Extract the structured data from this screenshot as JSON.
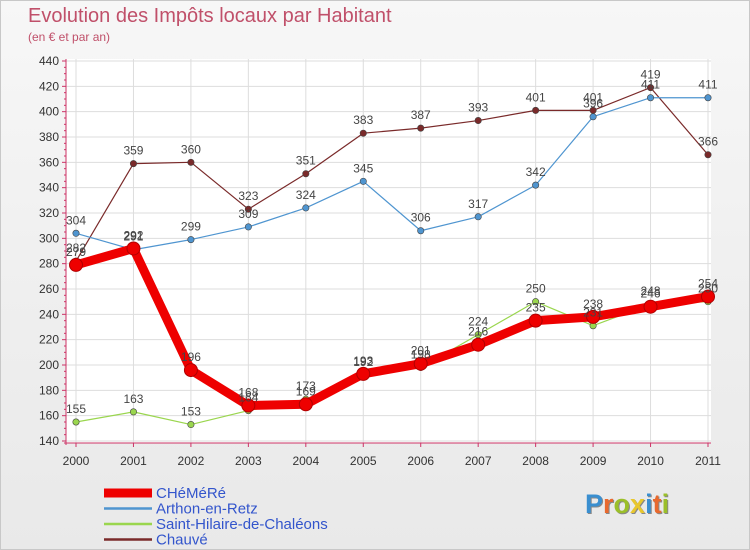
{
  "header": {
    "title": "Evolution des Impôts locaux par Habitant",
    "subtitle": "(en € et par an)"
  },
  "logo": {
    "text": "Proxiti",
    "letters": [
      {
        "ch": "P",
        "color": "#3a8fd0"
      },
      {
        "ch": "r",
        "color": "#e8692e"
      },
      {
        "ch": "o",
        "color": "#9bbf2a"
      },
      {
        "ch": "x",
        "color": "#e8c72e"
      },
      {
        "ch": "i",
        "color": "#3a8fd0"
      },
      {
        "ch": "t",
        "color": "#e8692e"
      },
      {
        "ch": "i",
        "color": "#9bbf2a"
      }
    ]
  },
  "chart_data": {
    "type": "line",
    "title": "Evolution des Impôts locaux par Habitant",
    "subtitle": "(en € et par an)",
    "x": [
      "2000",
      "2001",
      "2002",
      "2003",
      "2004",
      "2005",
      "2006",
      "2007",
      "2008",
      "2009",
      "2010",
      "2011"
    ],
    "ylim": [
      140,
      440
    ],
    "yticks": [
      140,
      160,
      180,
      200,
      220,
      240,
      260,
      280,
      300,
      320,
      340,
      360,
      380,
      400,
      420,
      440
    ],
    "grid": true,
    "legend_placement": "bottom-left",
    "series": [
      {
        "name": "CHéMéRé",
        "color": "#ee0000",
        "values": [
          279,
          292,
          196,
          168,
          169,
          193,
          201,
          216,
          235,
          238,
          246,
          254
        ],
        "labels": [
          "279",
          "292",
          "196",
          "168",
          "169",
          "193",
          "201",
          "216",
          "235",
          "238",
          "246",
          "254"
        ]
      },
      {
        "name": "Arthon-en-Retz",
        "color": "#4f95d0",
        "values": [
          304,
          291,
          299,
          309,
          324,
          345,
          306,
          317,
          342,
          396,
          411,
          411
        ],
        "labels": [
          "304",
          "291",
          "299",
          "309",
          "324",
          "345",
          "306",
          "317",
          "342",
          "396",
          "411",
          "411"
        ]
      },
      {
        "name": "Saint-Hilaire-de-Chaléons",
        "color": "#9ad64e",
        "values": [
          155,
          163,
          153,
          164,
          173,
          192,
          198,
          224,
          250,
          231,
          248,
          250
        ],
        "labels": [
          "155",
          "163",
          "153",
          "164",
          "173",
          "192",
          "198",
          "224",
          "250",
          "231",
          "248",
          "250"
        ]
      },
      {
        "name": "Chauvé",
        "color": "#7a2a2a",
        "values": [
          282,
          359,
          360,
          323,
          351,
          383,
          387,
          393,
          401,
          401,
          419,
          366
        ],
        "labels": [
          "282",
          "359",
          "360",
          "323",
          "351",
          "383",
          "387",
          "393",
          "401",
          "401",
          "419",
          "366"
        ]
      }
    ]
  }
}
